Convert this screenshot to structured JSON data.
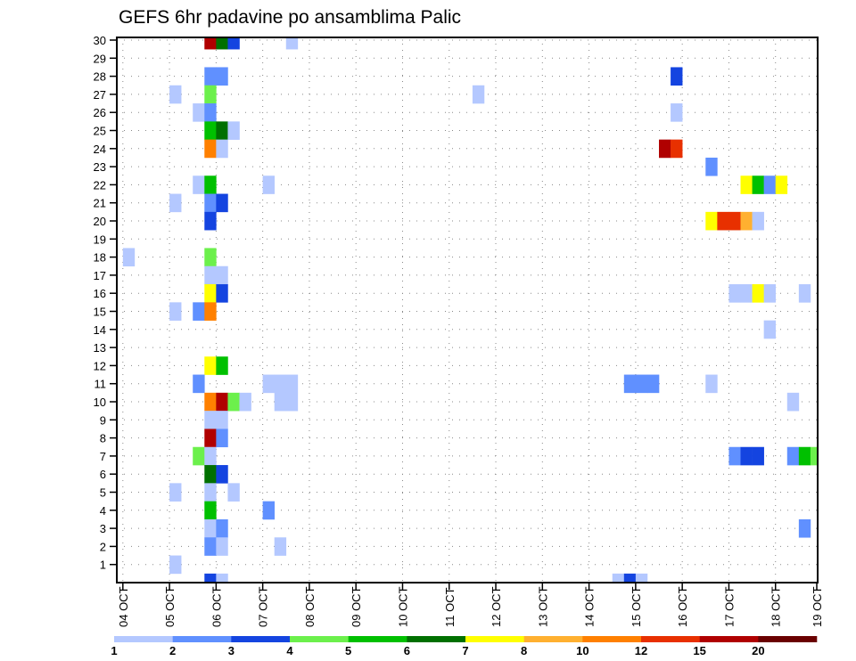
{
  "chart_data": {
    "type": "heatmap",
    "title": "GEFS 6hr padavine po ansamblima Palic",
    "xlabel": "",
    "ylabel": "",
    "x_tick_labels": [
      "04 OCT",
      "05 OCT",
      "06 OCT",
      "07 OCT",
      "08 OCT",
      "09 OCT",
      "10 OCT",
      "11 OCT",
      "12 OCT",
      "13 OCT",
      "14 OCT",
      "15 OCT",
      "16 OCT",
      "17 OCT",
      "18 OCT",
      "19 OCT"
    ],
    "x_step_hours": 6,
    "y_tick_labels": [
      "1",
      "2",
      "3",
      "4",
      "5",
      "6",
      "7",
      "8",
      "9",
      "10",
      "11",
      "12",
      "13",
      "14",
      "15",
      "16",
      "17",
      "18",
      "19",
      "20",
      "21",
      "22",
      "23",
      "24",
      "25",
      "26",
      "27",
      "28",
      "29",
      "30"
    ],
    "ylim": [
      0,
      30
    ],
    "grid": true,
    "legend": {
      "placement": "bottom",
      "levels": [
        "1",
        "2",
        "3",
        "4",
        "5",
        "6",
        "7",
        "8",
        "10",
        "12",
        "15",
        "20"
      ],
      "colors": [
        "#b4c8ff",
        "#6090ff",
        "#1444e0",
        "#6cf04c",
        "#00c000",
        "#007000",
        "#ffff00",
        "#ffb030",
        "#ff8000",
        "#e83000",
        "#b00000",
        "#6a0000"
      ]
    },
    "cells_format": "[step_index_6h_from_04_OCT_00Z, ensemble_member, precip_mm]",
    "cells": [
      [
        7,
        30,
        17.5
      ],
      [
        8,
        30,
        6.5
      ],
      [
        9,
        30,
        3.5
      ],
      [
        14,
        30,
        1.5
      ],
      [
        7,
        28,
        2.5
      ],
      [
        8,
        28,
        2.5
      ],
      [
        47,
        28,
        3.5
      ],
      [
        4,
        27,
        1.5
      ],
      [
        7,
        27,
        4.5
      ],
      [
        30,
        27,
        1.5
      ],
      [
        6,
        26,
        1.5
      ],
      [
        7,
        26,
        2.5
      ],
      [
        47,
        26,
        1.5
      ],
      [
        7,
        25,
        5.5
      ],
      [
        8,
        25,
        6.5
      ],
      [
        9,
        25,
        1.5
      ],
      [
        7,
        24,
        11
      ],
      [
        8,
        24,
        1.5
      ],
      [
        46,
        24,
        17.5
      ],
      [
        47,
        24,
        13.5
      ],
      [
        50,
        23,
        2.5
      ],
      [
        6,
        22,
        1.5
      ],
      [
        7,
        22,
        5.5
      ],
      [
        12,
        22,
        1.5
      ],
      [
        53,
        22,
        7.5
      ],
      [
        54,
        22,
        5.5
      ],
      [
        55,
        22,
        2.5
      ],
      [
        56,
        22,
        7.5
      ],
      [
        4,
        21,
        1.5
      ],
      [
        7,
        21,
        2.5
      ],
      [
        8,
        21,
        3.5
      ],
      [
        7,
        20,
        3.5
      ],
      [
        50,
        20,
        7.5
      ],
      [
        51,
        20,
        13.5
      ],
      [
        52,
        20,
        13.5
      ],
      [
        53,
        20,
        9
      ],
      [
        54,
        20,
        1.5
      ],
      [
        0,
        18,
        1.5
      ],
      [
        7,
        18,
        4.5
      ],
      [
        7,
        17,
        1.5
      ],
      [
        8,
        17,
        1.5
      ],
      [
        7,
        16,
        7.5
      ],
      [
        8,
        16,
        3.5
      ],
      [
        52,
        16,
        1.5
      ],
      [
        53,
        16,
        1.5
      ],
      [
        54,
        16,
        7.5
      ],
      [
        55,
        16,
        1.5
      ],
      [
        58,
        16,
        1.5
      ],
      [
        4,
        15,
        1.5
      ],
      [
        6,
        15,
        2.5
      ],
      [
        7,
        15,
        11
      ],
      [
        55,
        14,
        1.5
      ],
      [
        7,
        12,
        7.5
      ],
      [
        8,
        12,
        5.5
      ],
      [
        6,
        11,
        2.5
      ],
      [
        12,
        11,
        1.5
      ],
      [
        13,
        11,
        1.5
      ],
      [
        14,
        11,
        1.5
      ],
      [
        43,
        11,
        2.5
      ],
      [
        44,
        11,
        2.5
      ],
      [
        45,
        11,
        2.5
      ],
      [
        50,
        11,
        1.5
      ],
      [
        7,
        10,
        11
      ],
      [
        8,
        10,
        17.5
      ],
      [
        9,
        10,
        4.5
      ],
      [
        10,
        10,
        1.5
      ],
      [
        13,
        10,
        1.5
      ],
      [
        14,
        10,
        1.5
      ],
      [
        57,
        10,
        1.5
      ],
      [
        7,
        9,
        1.5
      ],
      [
        8,
        9,
        1.5
      ],
      [
        7,
        8,
        17.5
      ],
      [
        8,
        8,
        2.5
      ],
      [
        6,
        7,
        4.5
      ],
      [
        7,
        7,
        1.5
      ],
      [
        52,
        7,
        2.5
      ],
      [
        53,
        7,
        3.5
      ],
      [
        54,
        7,
        3.5
      ],
      [
        57,
        7,
        2.5
      ],
      [
        58,
        7,
        5.5
      ],
      [
        59,
        7,
        4.5
      ],
      [
        7,
        6,
        6.5
      ],
      [
        8,
        6,
        3.5
      ],
      [
        4,
        5,
        1.5
      ],
      [
        7,
        5,
        1.5
      ],
      [
        9,
        5,
        1.5
      ],
      [
        7,
        4,
        5.5
      ],
      [
        12,
        4,
        2.5
      ],
      [
        7,
        3,
        1.5
      ],
      [
        8,
        3,
        2.5
      ],
      [
        58,
        3,
        2.5
      ],
      [
        7,
        2,
        2.5
      ],
      [
        8,
        2,
        1.5
      ],
      [
        13,
        2,
        1.5
      ],
      [
        4,
        1,
        1.5
      ],
      [
        7,
        0,
        3.5
      ],
      [
        8,
        0,
        1.5
      ],
      [
        42,
        0,
        1.5
      ],
      [
        43,
        0,
        3.5
      ],
      [
        44,
        0,
        1.5
      ]
    ]
  }
}
